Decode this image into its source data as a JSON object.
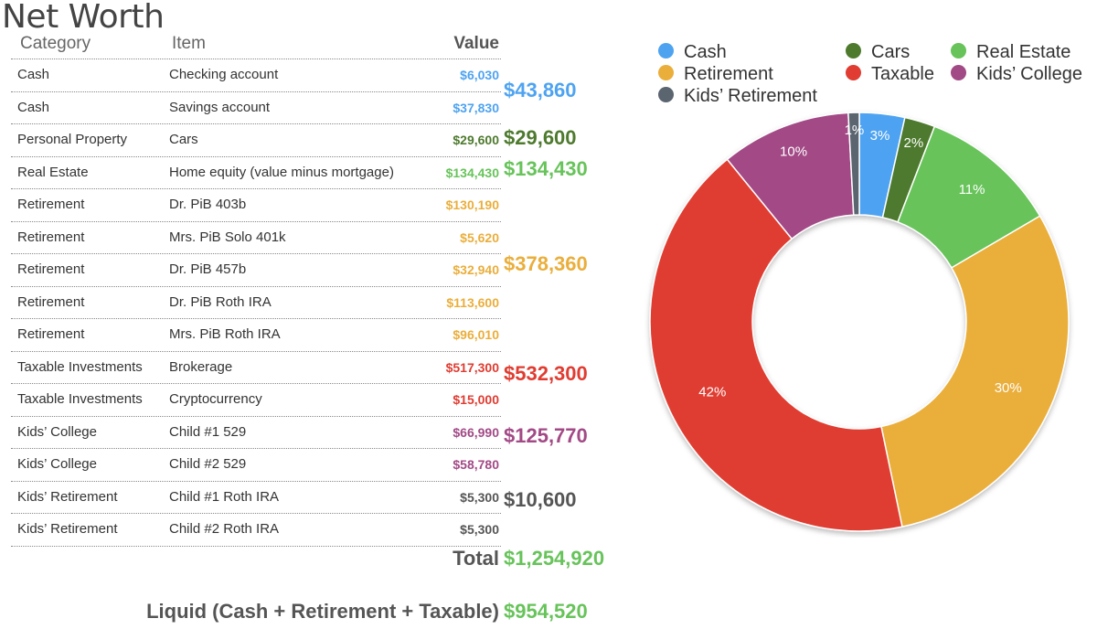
{
  "page": {
    "title": "Net Worth"
  },
  "table": {
    "headers": {
      "category": "Category",
      "item": "Item",
      "value": "Value"
    },
    "rows": [
      {
        "category": "Cash",
        "item": "Checking account",
        "value": "$6,030",
        "color": "#4ea3f1"
      },
      {
        "category": "Cash",
        "item": "Savings account",
        "value": "$37,830",
        "color": "#4ea3f1"
      },
      {
        "category": "Personal Property",
        "item": "Cars",
        "value": "$29,600",
        "color": "#4e7a2e"
      },
      {
        "category": "Real Estate",
        "item": "Home equity (value minus mortgage)",
        "value": "$134,430",
        "color": "#67c35a"
      },
      {
        "category": "Retirement",
        "item": "Dr. PiB 403b",
        "value": "$130,190",
        "color": "#eaae3b"
      },
      {
        "category": "Retirement",
        "item": "Mrs. PiB Solo 401k",
        "value": "$5,620",
        "color": "#eaae3b"
      },
      {
        "category": "Retirement",
        "item": "Dr. PiB 457b",
        "value": "$32,940",
        "color": "#eaae3b"
      },
      {
        "category": "Retirement",
        "item": "Dr. PiB Roth IRA",
        "value": "$113,600",
        "color": "#eaae3b"
      },
      {
        "category": "Retirement",
        "item": "Mrs. PiB Roth IRA",
        "value": "$96,010",
        "color": "#eaae3b"
      },
      {
        "category": "Taxable Investments",
        "item": "Brokerage",
        "value": "$517,300",
        "color": "#e03c31"
      },
      {
        "category": "Taxable Investments",
        "item": "Cryptocurrency",
        "value": "$15,000",
        "color": "#e03c31"
      },
      {
        "category": "Kids’ College",
        "item": "Child #1 529",
        "value": "$66,990",
        "color": "#a24a86"
      },
      {
        "category": "Kids’ College",
        "item": "Child #2 529",
        "value": "$58,780",
        "color": "#a24a86"
      },
      {
        "category": "Kids’ Retirement",
        "item": "Child #1 Roth IRA",
        "value": "$5,300",
        "color": "#555555"
      },
      {
        "category": "Kids’ Retirement",
        "item": "Child #2 Roth IRA",
        "value": "$5,300",
        "color": "#555555"
      }
    ],
    "group_totals": [
      {
        "value": "$43,860",
        "color": "#4ea3f1"
      },
      {
        "value": "$29,600",
        "color": "#4e7a2e"
      },
      {
        "value": "$134,430",
        "color": "#67c35a"
      },
      {
        "value": "$378,360",
        "color": "#eaae3b"
      },
      {
        "value": "$532,300",
        "color": "#e03c31"
      },
      {
        "value": "$125,770",
        "color": "#a24a86"
      },
      {
        "value": "$10,600",
        "color": "#555555"
      }
    ]
  },
  "summary": {
    "total_label": "Total",
    "total_value": "$1,254,920",
    "liquid_label": "Liquid (Cash + Retirement + Taxable)",
    "liquid_value": "$954,520"
  },
  "chart_data": {
    "type": "pie",
    "style": "donut",
    "legend_position": "top",
    "categories": [
      "Cash",
      "Cars",
      "Real Estate",
      "Retirement",
      "Taxable",
      "Kids’ College",
      "Kids’ Retirement"
    ],
    "values": [
      43860,
      29600,
      134430,
      378360,
      532300,
      125770,
      10600
    ],
    "labels": [
      "3%",
      "2%",
      "11%",
      "30%",
      "42%",
      "10%",
      "1%"
    ],
    "colors": [
      "#4ea3f1",
      "#4e7a2e",
      "#67c35a",
      "#eaae3b",
      "#e03c31",
      "#a24a86",
      "#5a6570"
    ]
  }
}
